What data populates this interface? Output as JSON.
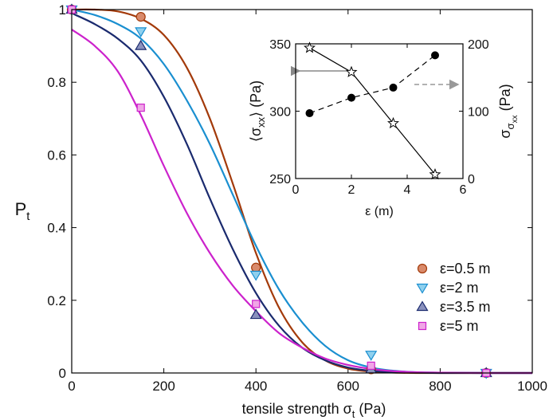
{
  "chart_data": [
    {
      "type": "line",
      "xlabel": {
        "main": "tensile strength σ",
        "sub": "t",
        "unit": "(Pa)"
      },
      "ylabel": {
        "main": "P",
        "sub": "t"
      },
      "xlim": [
        0,
        1000
      ],
      "ylim": [
        0,
        1
      ],
      "xticks": [
        0,
        200,
        400,
        600,
        800,
        1000
      ],
      "yticks": [
        0,
        0.2,
        0.4,
        0.6,
        0.8,
        1
      ],
      "ytick_labels": [
        "0",
        "0.2",
        "0.4",
        "0.6",
        "0.8",
        "1"
      ],
      "grid": false,
      "legend_position": "bottom-right",
      "series": [
        {
          "name": "ε=0.5 m",
          "color": "#a33a0a",
          "marker": "circle",
          "marker_fill": "#d98a6b",
          "curve": {
            "x": [
              0,
              50,
              100,
              150,
              200,
              250,
              300,
              350,
              400,
              450,
              500,
              550,
              600,
              650,
              700,
              750,
              800,
              900,
              1000
            ],
            "y": [
              1.0,
              1.0,
              0.995,
              0.975,
              0.93,
              0.84,
              0.7,
              0.52,
              0.33,
              0.18,
              0.085,
              0.035,
              0.012,
              0.004,
              0.001,
              0,
              0,
              0,
              0
            ]
          },
          "points": {
            "x": [
              0,
              150,
              400,
              650,
              900
            ],
            "y": [
              1.0,
              0.98,
              0.29,
              0.01,
              0
            ]
          }
        },
        {
          "name": "ε=2 m",
          "color": "#1a8fd0",
          "marker": "triangle-down",
          "marker_fill": "#8fd0ee",
          "curve": {
            "x": [
              0,
              50,
              100,
              150,
              200,
              250,
              300,
              350,
              400,
              450,
              500,
              550,
              600,
              650,
              700,
              750,
              800,
              900,
              1000
            ],
            "y": [
              1.0,
              0.985,
              0.96,
              0.92,
              0.85,
              0.75,
              0.63,
              0.49,
              0.35,
              0.23,
              0.14,
              0.075,
              0.035,
              0.015,
              0.006,
              0.002,
              0.001,
              0,
              0
            ]
          },
          "points": {
            "x": [
              0,
              150,
              400,
              650,
              900
            ],
            "y": [
              1.0,
              0.94,
              0.27,
              0.05,
              0
            ]
          }
        },
        {
          "name": "ε=3.5 m",
          "color": "#1a2a6e",
          "marker": "triangle-up",
          "marker_fill": "#8a91bd",
          "curve": {
            "x": [
              0,
              50,
              100,
              150,
              200,
              250,
              300,
              350,
              400,
              450,
              500,
              550,
              600,
              650,
              700,
              750,
              800,
              900,
              1000
            ],
            "y": [
              0.99,
              0.96,
              0.92,
              0.86,
              0.76,
              0.63,
              0.48,
              0.34,
              0.22,
              0.13,
              0.07,
              0.035,
              0.015,
              0.006,
              0.002,
              0.001,
              0,
              0,
              0
            ]
          },
          "points": {
            "x": [
              0,
              150,
              400,
              650,
              900
            ],
            "y": [
              1.0,
              0.9,
              0.16,
              0.01,
              0
            ]
          }
        },
        {
          "name": "ε=5 m",
          "color": "#cc22cc",
          "marker": "square",
          "marker_fill": "#f0a6e6",
          "curve": {
            "x": [
              0,
              50,
              100,
              150,
              200,
              250,
              300,
              350,
              400,
              450,
              500,
              550,
              600,
              650,
              700,
              750,
              800,
              900,
              1000
            ],
            "y": [
              0.945,
              0.9,
              0.83,
              0.71,
              0.57,
              0.44,
              0.33,
              0.24,
              0.17,
              0.11,
              0.07,
              0.04,
              0.022,
              0.011,
              0.005,
              0.002,
              0.001,
              0,
              0
            ]
          },
          "points": {
            "x": [
              0,
              150,
              400,
              650,
              900
            ],
            "y": [
              1.0,
              0.73,
              0.19,
              0.02,
              0
            ]
          }
        }
      ]
    },
    {
      "type": "line",
      "xlabel": "ε (m)",
      "ylabel_left": {
        "main": "⟨σ",
        "sub": "xx",
        "close": "⟩",
        "unit": "(Pa)"
      },
      "ylabel_right": {
        "main": "σ",
        "sub": "σ",
        "subsub": "xx",
        "unit": "(Pa)"
      },
      "xlim": [
        0,
        6
      ],
      "ylim_left": [
        250,
        350
      ],
      "ylim_right": [
        0,
        200
      ],
      "xticks": [
        0,
        2,
        4,
        6
      ],
      "yticks_left": [
        250,
        300,
        350
      ],
      "yticks_right": [
        0,
        100,
        200
      ],
      "grid": false,
      "series": [
        {
          "axis": "left",
          "style": "solid",
          "marker": "star",
          "color": "#000000",
          "x": [
            0.5,
            2,
            3.5,
            5
          ],
          "y": [
            347,
            329,
            291,
            253
          ]
        },
        {
          "axis": "right",
          "style": "dashed",
          "marker": "filled-circle",
          "color": "#000000",
          "x": [
            0.5,
            2,
            3.5,
            5
          ],
          "y": [
            97,
            120,
            135,
            183
          ]
        }
      ]
    }
  ]
}
